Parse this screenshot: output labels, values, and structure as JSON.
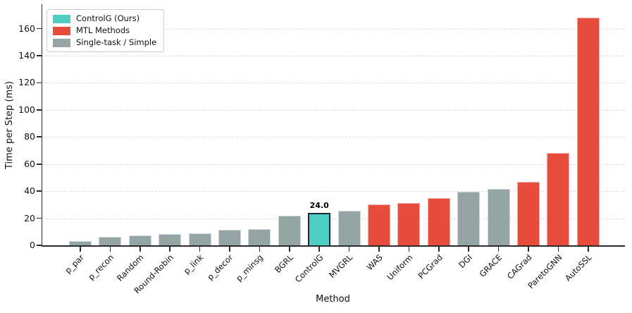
{
  "figure": {
    "background": "#ffffff"
  },
  "legend": {
    "position": "upper left",
    "items": [
      {
        "label": "ControlG (Ours)",
        "color": "#4ECDC4",
        "group": "ours"
      },
      {
        "label": "MTL Methods",
        "color": "#E74C3C",
        "group": "mtl"
      },
      {
        "label": "Single-task / Simple",
        "color": "#95A5A6",
        "group": "single"
      }
    ]
  },
  "chart_data": {
    "type": "bar",
    "title": "",
    "xlabel": "Method",
    "ylabel": "Time per Step (ms)",
    "ylim": [
      0,
      178
    ],
    "yticks": [
      0,
      20,
      40,
      60,
      80,
      100,
      120,
      140,
      160
    ],
    "grid": "horizontal-dashed",
    "legend_position": "upper left",
    "categories": [
      "p_par",
      "p_recon",
      "Random",
      "Round-Robin",
      "p_link",
      "p_decor",
      "p_minsg",
      "BGRL",
      "ControlG",
      "MVGRL",
      "WAS",
      "Uniform",
      "PCGrad",
      "DGI",
      "GRACE",
      "CAGrad",
      "ParetoGNN",
      "AutoSSL"
    ],
    "values": [
      3.2,
      6.4,
      7.5,
      8.3,
      9.1,
      11.3,
      11.9,
      21.8,
      24.0,
      25.4,
      30.4,
      31.4,
      34.7,
      39.8,
      41.9,
      47.1,
      68.0,
      168.0
    ],
    "groups": [
      "single",
      "single",
      "single",
      "single",
      "single",
      "single",
      "single",
      "single",
      "ours",
      "single",
      "mtl",
      "mtl",
      "mtl",
      "single",
      "single",
      "mtl",
      "mtl",
      "mtl"
    ],
    "colors": {
      "ours": "#4ECDC4",
      "mtl": "#E74C3C",
      "single": "#95A5A6",
      "ours_edge": "#1B2838"
    },
    "annotations": [
      {
        "category": "ControlG",
        "text": "24.0"
      }
    ]
  }
}
